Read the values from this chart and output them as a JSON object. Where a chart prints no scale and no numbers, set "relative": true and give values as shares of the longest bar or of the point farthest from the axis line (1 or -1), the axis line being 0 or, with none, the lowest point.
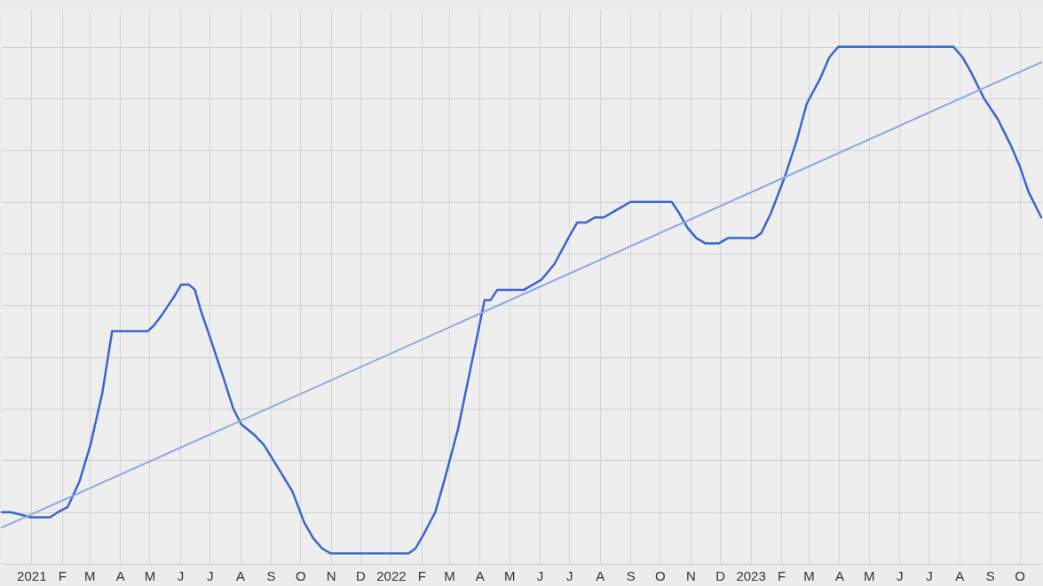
{
  "chart_data": {
    "type": "line",
    "relative": true,
    "grid": true,
    "marker": "none",
    "line_style": "solid",
    "xlim": [
      "2020-12-02",
      "2023-10-23"
    ],
    "xticks": [
      {
        "value": "2021-01-01",
        "label": "2021"
      },
      {
        "value": "2021-02-01",
        "label": "F"
      },
      {
        "value": "2021-03-01",
        "label": "M"
      },
      {
        "value": "2021-04-01",
        "label": "A"
      },
      {
        "value": "2021-05-01",
        "label": "M"
      },
      {
        "value": "2021-06-01",
        "label": "J"
      },
      {
        "value": "2021-07-01",
        "label": "J"
      },
      {
        "value": "2021-08-01",
        "label": "A"
      },
      {
        "value": "2021-09-01",
        "label": "S"
      },
      {
        "value": "2021-10-01",
        "label": "O"
      },
      {
        "value": "2021-11-01",
        "label": "N"
      },
      {
        "value": "2021-12-01",
        "label": "D"
      },
      {
        "value": "2022-01-01",
        "label": "2022"
      },
      {
        "value": "2022-02-01",
        "label": "F"
      },
      {
        "value": "2022-03-01",
        "label": "M"
      },
      {
        "value": "2022-04-01",
        "label": "A"
      },
      {
        "value": "2022-05-01",
        "label": "M"
      },
      {
        "value": "2022-06-01",
        "label": "J"
      },
      {
        "value": "2022-07-01",
        "label": "J"
      },
      {
        "value": "2022-08-01",
        "label": "A"
      },
      {
        "value": "2022-09-01",
        "label": "S"
      },
      {
        "value": "2022-10-01",
        "label": "O"
      },
      {
        "value": "2022-11-01",
        "label": "N"
      },
      {
        "value": "2022-12-01",
        "label": "D"
      },
      {
        "value": "2023-01-01",
        "label": "2023"
      },
      {
        "value": "2023-02-01",
        "label": "F"
      },
      {
        "value": "2023-03-01",
        "label": "M"
      },
      {
        "value": "2023-04-01",
        "label": "A"
      },
      {
        "value": "2023-05-01",
        "label": "M"
      },
      {
        "value": "2023-06-01",
        "label": "J"
      },
      {
        "value": "2023-07-01",
        "label": "J"
      },
      {
        "value": "2023-08-01",
        "label": "A"
      },
      {
        "value": "2023-09-01",
        "label": "S"
      },
      {
        "value": "2023-10-01",
        "label": "O"
      }
    ],
    "series": [
      {
        "color": "#3a66cc",
        "x": [
          "2020-12-02",
          "2020-12-11",
          "2021-01-01",
          "2021-01-20",
          "2021-01-28",
          "2021-02-07",
          "2021-02-19",
          "2021-03-02",
          "2021-03-14",
          "2021-03-24",
          "2021-04-29",
          "2021-05-05",
          "2021-05-13",
          "2021-05-20",
          "2021-05-27",
          "2021-06-02",
          "2021-06-10",
          "2021-06-16",
          "2021-06-22",
          "2021-07-01",
          "2021-07-15",
          "2021-07-25",
          "2021-08-02",
          "2021-08-15",
          "2021-08-25",
          "2021-09-07",
          "2021-09-23",
          "2021-10-05",
          "2021-10-14",
          "2021-10-23",
          "2021-11-01",
          "2021-11-26",
          "2022-01-01",
          "2022-01-19",
          "2022-01-26",
          "2022-02-04",
          "2022-02-15",
          "2022-02-24",
          "2022-03-10",
          "2022-03-23",
          "2022-04-06",
          "2022-04-12",
          "2022-04-19",
          "2022-04-28",
          "2022-05-16",
          "2022-05-25",
          "2022-06-03",
          "2022-06-16",
          "2022-06-30",
          "2022-07-09",
          "2022-07-18",
          "2022-07-27",
          "2022-08-05",
          "2022-08-14",
          "2022-08-23",
          "2022-09-01",
          "2022-09-08",
          "2022-10-07",
          "2022-10-13",
          "2022-10-20",
          "2022-10-29",
          "2022-11-07",
          "2022-11-16",
          "2022-11-30",
          "2022-12-09",
          "2023-01-05",
          "2023-01-12",
          "2023-01-22",
          "2023-02-05",
          "2023-02-17",
          "2023-02-27",
          "2023-03-13",
          "2023-03-22",
          "2023-03-31",
          "2023-04-05",
          "2023-07-26",
          "2023-08-04",
          "2023-08-13",
          "2023-08-26",
          "2023-09-09",
          "2023-09-22",
          "2023-10-01",
          "2023-10-10",
          "2023-10-23"
        ],
        "values": [
          0.1,
          0.1,
          0.09,
          0.09,
          0.1,
          0.11,
          0.16,
          0.23,
          0.33,
          0.45,
          0.45,
          0.46,
          0.48,
          0.5,
          0.52,
          0.54,
          0.54,
          0.53,
          0.49,
          0.44,
          0.36,
          0.3,
          0.27,
          0.25,
          0.23,
          0.19,
          0.14,
          0.08,
          0.05,
          0.03,
          0.02,
          0.02,
          0.02,
          0.02,
          0.03,
          0.06,
          0.1,
          0.16,
          0.26,
          0.38,
          0.51,
          0.51,
          0.53,
          0.53,
          0.53,
          0.54,
          0.55,
          0.58,
          0.63,
          0.66,
          0.66,
          0.67,
          0.67,
          0.68,
          0.69,
          0.7,
          0.7,
          0.7,
          0.7,
          0.68,
          0.65,
          0.63,
          0.62,
          0.62,
          0.63,
          0.63,
          0.64,
          0.68,
          0.75,
          0.82,
          0.89,
          0.94,
          0.98,
          1.0,
          1,
          1,
          0.98,
          0.95,
          0.9,
          0.86,
          0.81,
          0.77,
          0.72,
          0.67
        ]
      },
      {
        "type": "line",
        "color": "#8ea8e0",
        "x": [
          "2020-12-02",
          "2023-10-23"
        ],
        "values": [
          0.07,
          0.97
        ]
      }
    ]
  }
}
